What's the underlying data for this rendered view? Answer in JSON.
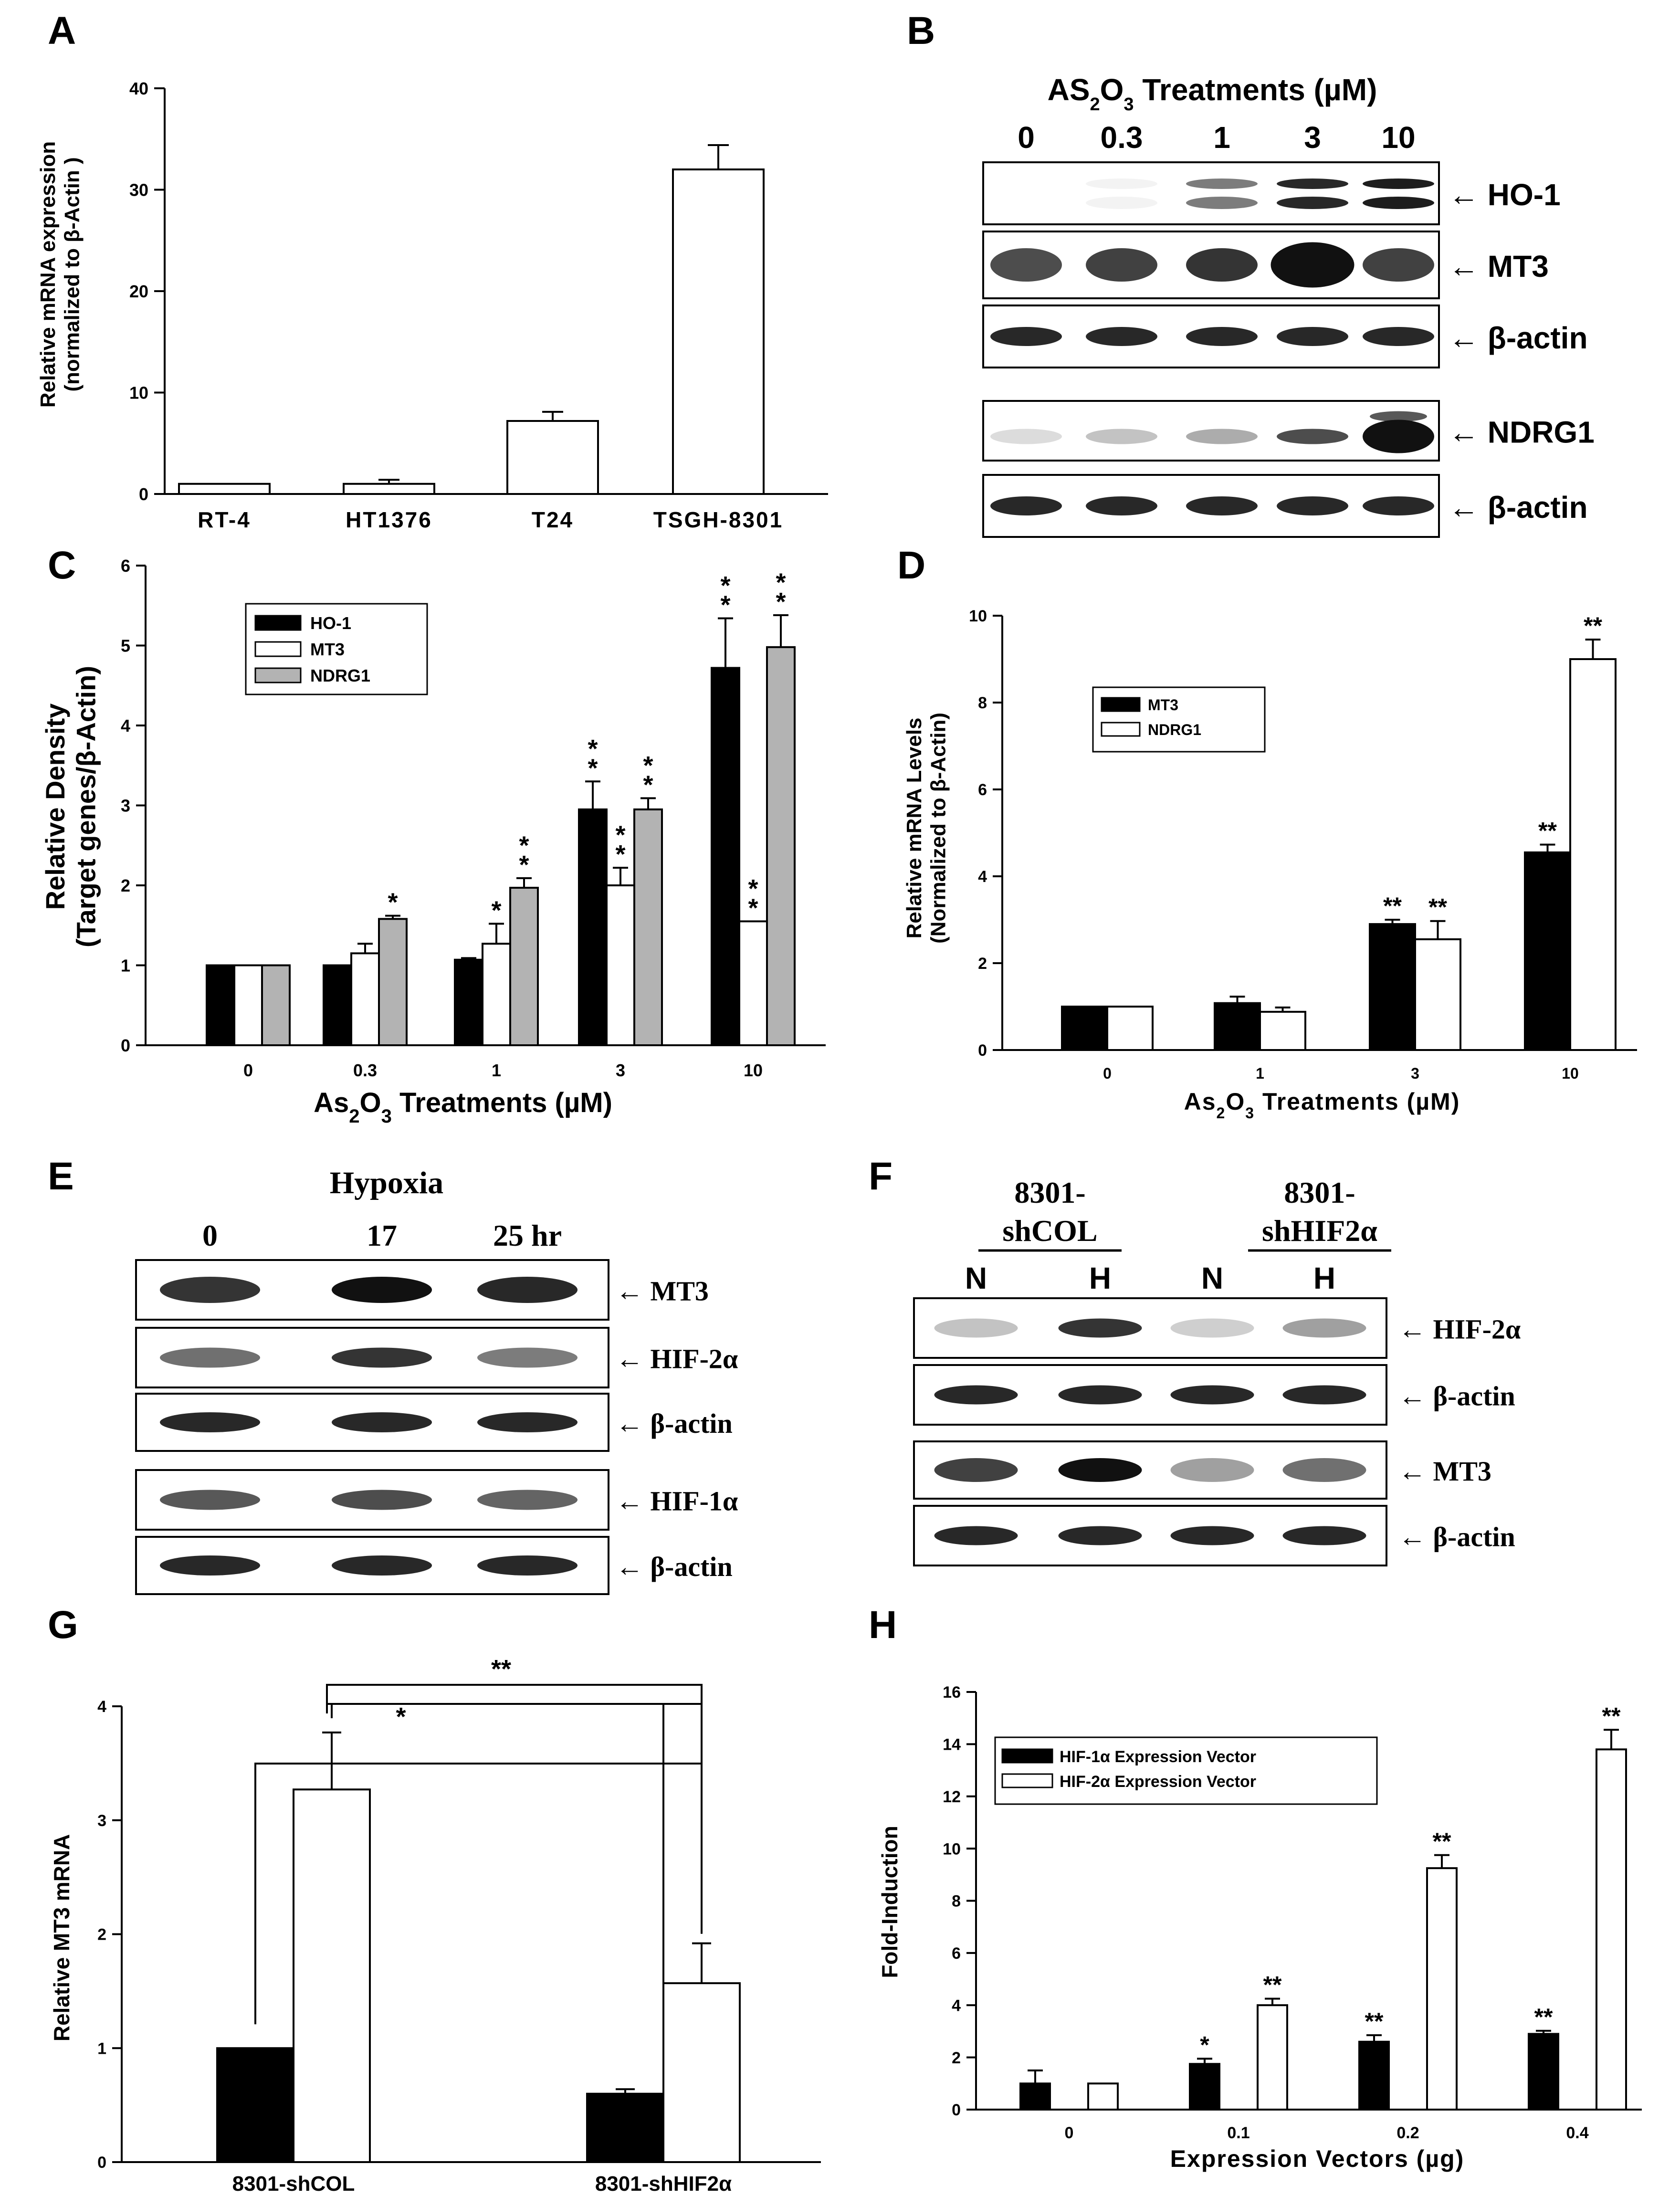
{
  "panels": {
    "A": {
      "letter": "A",
      "chart_data": {
        "type": "bar",
        "categories": [
          "RT-4",
          "HT1376",
          "T24",
          "TSGH-8301"
        ],
        "values": [
          1.0,
          1.0,
          7.2,
          32.0
        ],
        "errors": [
          0,
          0.4,
          0.9,
          2.4
        ],
        "ylabel": "Relative mRNA expression (normalized to β-Actin )",
        "ylabel_lines": [
          "Relative mRNA expression",
          "(normalized to β-Actin )"
        ],
        "ylim": [
          0,
          40
        ],
        "yticks": [
          0,
          10,
          20,
          30,
          40
        ],
        "grid": false
      }
    },
    "B": {
      "letter": "B",
      "title_html": "AS<tspan baseline-shift='sub' font-size='38'>2</tspan>O<tspan baseline-shift='sub' font-size='38'>3</tspan> Treatments (µM)",
      "title_text": "AS2O3 Treatments (µM)",
      "lanes": [
        "0",
        "0.3",
        "1",
        "3",
        "10"
      ],
      "blots": [
        "← HO-1",
        "← MT3",
        "← β-actin",
        "← NDRG1",
        "← β-actin"
      ]
    },
    "C": {
      "letter": "C",
      "chart_data": {
        "type": "bar",
        "categories": [
          "0",
          "0.3",
          "1",
          "3",
          "10"
        ],
        "series": [
          {
            "name": "HO-1",
            "color": "#000000",
            "values": [
              1.0,
              1.0,
              1.07,
              2.95,
              4.72
            ],
            "errors": [
              0,
              0,
              0.02,
              0.35,
              0.62
            ],
            "sig": [
              "",
              "",
              "",
              "**",
              "**"
            ]
          },
          {
            "name": "MT3",
            "color": "#ffffff",
            "values": [
              1.0,
              1.15,
              1.27,
              2.0,
              1.55
            ],
            "errors": [
              0,
              0.12,
              0.25,
              0.22,
              0
            ],
            "sig": [
              "",
              "",
              "*",
              "**",
              "**"
            ]
          },
          {
            "name": "NDRG1",
            "color": "#b3b3b3",
            "values": [
              1.0,
              1.58,
              1.97,
              2.95,
              4.98
            ],
            "errors": [
              0,
              0.04,
              0.12,
              0.14,
              0.4
            ],
            "sig": [
              "",
              "*",
              "**",
              "**",
              "**"
            ]
          }
        ],
        "xlabel": "As2O3 Treatments (µM)",
        "xlabel_html": "As<tspan baseline-shift='sub' font-size='40'>2</tspan>O<tspan baseline-shift='sub' font-size='40'>3</tspan> Treatments (µM)",
        "ylabel_lines": [
          "Relative Density",
          "(Target genes/β-Actin)"
        ],
        "ylim": [
          0,
          6
        ],
        "yticks": [
          0,
          1,
          2,
          3,
          4,
          5,
          6
        ],
        "legend_position": "top-left"
      }
    },
    "D": {
      "letter": "D",
      "chart_data": {
        "type": "bar",
        "categories": [
          "0",
          "1",
          "3",
          "10"
        ],
        "series": [
          {
            "name": "MT3",
            "color": "#000000",
            "values": [
              1.0,
              1.08,
              2.9,
              4.55
            ],
            "errors": [
              0,
              0.15,
              0.1,
              0.18
            ],
            "sig": [
              "",
              "",
              "**",
              "**"
            ]
          },
          {
            "name": "NDRG1",
            "color": "#ffffff",
            "values": [
              1.0,
              0.88,
              2.55,
              9.0
            ],
            "errors": [
              0,
              0.1,
              0.42,
              0.45
            ],
            "sig": [
              "",
              "",
              "**",
              "**"
            ]
          }
        ],
        "xlabel": "As2O3 Treatments (µM)",
        "xlabel_html": "As<tspan baseline-shift='sub' font-size='32'>2</tspan>O<tspan baseline-shift='sub' font-size='32'>3</tspan> Treatments (µM)",
        "ylabel_lines": [
          "Relative mRNA Levels",
          "(Normalized to β-Actin)"
        ],
        "ylim": [
          0,
          10
        ],
        "yticks": [
          0,
          2,
          4,
          6,
          8,
          10
        ],
        "legend_position": "top-left"
      }
    },
    "E": {
      "letter": "E",
      "title": "Hypoxia",
      "lanes": [
        "0",
        "17",
        "25 hr"
      ],
      "blots": [
        "← MT3",
        "← HIF-2α",
        "← β-actin",
        "← HIF-1α",
        "← β-actin"
      ]
    },
    "F": {
      "letter": "F",
      "groups": [
        [
          "8301-",
          "shCOL"
        ],
        [
          "8301-",
          "shHIF2α"
        ]
      ],
      "lanes": [
        "N",
        "H",
        "N",
        "H"
      ],
      "blots": [
        "← HIF-2α",
        "← β-actin",
        "← MT3",
        "← β-actin"
      ]
    },
    "G": {
      "letter": "G",
      "chart_data": {
        "type": "bar",
        "categories": [
          "8301-shCOL",
          "8301-shHIF2α"
        ],
        "series": [
          {
            "color": "#000000",
            "values": [
              1.0,
              0.6
            ],
            "errors": [
              0,
              0.04
            ]
          },
          {
            "color": "#ffffff",
            "values": [
              3.27,
              1.57
            ],
            "errors": [
              0.5,
              0.35
            ]
          }
        ],
        "ylabel": "Relative MT3 mRNA",
        "ylim": [
          0,
          4
        ],
        "yticks": [
          0,
          1,
          2,
          3,
          4
        ],
        "brackets": [
          "*",
          "**"
        ]
      }
    },
    "H": {
      "letter": "H",
      "chart_data": {
        "type": "bar",
        "categories": [
          "0",
          "0.1",
          "0.2",
          "0.4"
        ],
        "series": [
          {
            "name": "HIF-1α Expression Vector",
            "color": "#000000",
            "values": [
              1.0,
              1.75,
              2.6,
              2.9
            ],
            "errors": [
              0.5,
              0.2,
              0.25,
              0.12
            ],
            "sig": [
              "",
              "*",
              "**",
              "**"
            ]
          },
          {
            "name": "HIF-2α Expression Vector",
            "color": "#ffffff",
            "values": [
              1.0,
              4.0,
              9.25,
              13.8
            ],
            "errors": [
              0,
              0.25,
              0.5,
              0.75
            ],
            "sig": [
              "",
              "**",
              "**",
              "**"
            ]
          }
        ],
        "xlabel": "Expression Vectors (µg)",
        "ylabel": "Fold-Induction",
        "ylim": [
          0,
          16
        ],
        "yticks": [
          0,
          2,
          4,
          6,
          8,
          10,
          12,
          14,
          16
        ],
        "legend_position": "top-left"
      }
    }
  }
}
